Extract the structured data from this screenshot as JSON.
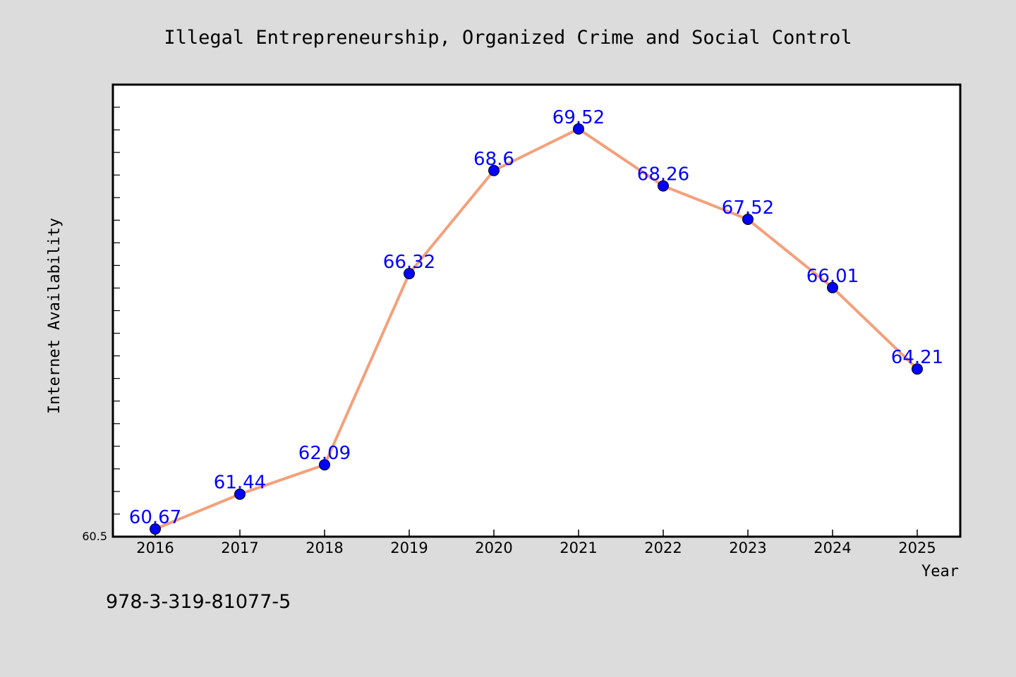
{
  "chart_data": {
    "type": "line",
    "title": "Illegal Entrepreneurship, Organized Crime and Social Control",
    "xlabel": "Year",
    "ylabel": "Internet Availability",
    "x": [
      "2016",
      "2017",
      "2018",
      "2019",
      "2020",
      "2021",
      "2022",
      "2023",
      "2024",
      "2025"
    ],
    "series": [
      {
        "values": [
          60.67,
          61.44,
          62.09,
          66.32,
          68.6,
          69.52,
          68.26,
          67.52,
          66.01,
          64.21
        ],
        "labels": [
          "60.67",
          "61.44",
          "62.09",
          "66.32",
          "68.6",
          "69.52",
          "68.26",
          "67.52",
          "66.01",
          "64.21"
        ],
        "line_color": "#f4a07a",
        "marker_color": "#0000ff"
      }
    ],
    "ylim": [
      60.5,
      70.5
    ],
    "y_tick_labels": [
      "60.5"
    ],
    "grid": false,
    "legend": "none"
  },
  "footer_text": "978-3-319-81077-5",
  "colors": {
    "background": "#dcdcdc",
    "plot_background": "#ffffff",
    "label_color": "#0000ff"
  }
}
